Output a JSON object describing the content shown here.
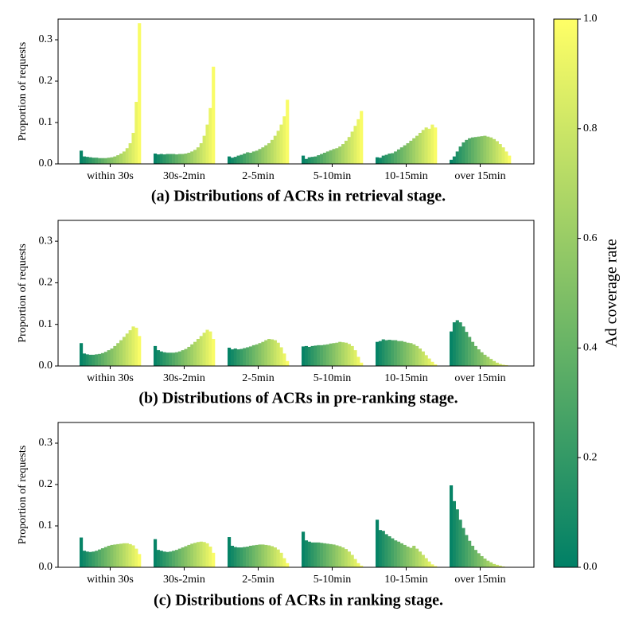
{
  "chart_data": [
    {
      "type": "bar",
      "title": "(a) Distributions of ACRs in retrieval stage.",
      "ylabel": "Proportion of requests",
      "categories": [
        "within 30s",
        "30s-2min",
        "2-5min",
        "5-10min",
        "10-15min",
        "over 15min"
      ],
      "values": [
        [
          0.032,
          0.018,
          0.017,
          0.016,
          0.015,
          0.015,
          0.014,
          0.014,
          0.014,
          0.015,
          0.016,
          0.018,
          0.021,
          0.025,
          0.03,
          0.038,
          0.05,
          0.075,
          0.15,
          0.34
        ],
        [
          0.025,
          0.023,
          0.024,
          0.023,
          0.024,
          0.024,
          0.024,
          0.023,
          0.024,
          0.024,
          0.025,
          0.027,
          0.03,
          0.034,
          0.04,
          0.05,
          0.068,
          0.095,
          0.135,
          0.235
        ],
        [
          0.018,
          0.015,
          0.017,
          0.02,
          0.022,
          0.025,
          0.028,
          0.027,
          0.03,
          0.032,
          0.036,
          0.04,
          0.045,
          0.05,
          0.058,
          0.068,
          0.08,
          0.095,
          0.115,
          0.155
        ],
        [
          0.02,
          0.012,
          0.016,
          0.017,
          0.018,
          0.021,
          0.024,
          0.027,
          0.03,
          0.033,
          0.036,
          0.038,
          0.042,
          0.048,
          0.056,
          0.065,
          0.078,
          0.092,
          0.108,
          0.128
        ],
        [
          0.016,
          0.015,
          0.02,
          0.022,
          0.025,
          0.026,
          0.03,
          0.035,
          0.04,
          0.045,
          0.05,
          0.056,
          0.062,
          0.068,
          0.075,
          0.082,
          0.088,
          0.085,
          0.095,
          0.088
        ],
        [
          0.01,
          0.018,
          0.03,
          0.042,
          0.052,
          0.058,
          0.062,
          0.064,
          0.065,
          0.066,
          0.067,
          0.068,
          0.066,
          0.064,
          0.06,
          0.055,
          0.048,
          0.04,
          0.03,
          0.02
        ]
      ],
      "ylim": [
        0,
        0.35
      ],
      "yticks": [
        {
          "value": 0,
          "label": "0.0"
        },
        0.1,
        0.2,
        0.3
      ],
      "colormap": "summer"
    },
    {
      "type": "bar",
      "title": "(b) Distributions of ACRs in pre-ranking stage.",
      "ylabel": "Proportion of requests",
      "categories": [
        "within 30s",
        "30s-2min",
        "2-5min",
        "5-10min",
        "10-15min",
        "over 15min"
      ],
      "values": [
        [
          0.055,
          0.03,
          0.028,
          0.027,
          0.027,
          0.028,
          0.029,
          0.031,
          0.034,
          0.038,
          0.042,
          0.048,
          0.055,
          0.062,
          0.07,
          0.078,
          0.086,
          0.095,
          0.092,
          0.072
        ],
        [
          0.048,
          0.038,
          0.035,
          0.033,
          0.032,
          0.032,
          0.032,
          0.033,
          0.035,
          0.038,
          0.041,
          0.046,
          0.052,
          0.058,
          0.065,
          0.072,
          0.08,
          0.087,
          0.083,
          0.065
        ],
        [
          0.044,
          0.04,
          0.042,
          0.04,
          0.041,
          0.043,
          0.045,
          0.047,
          0.05,
          0.052,
          0.055,
          0.058,
          0.062,
          0.065,
          0.064,
          0.062,
          0.056,
          0.045,
          0.03,
          0.012
        ],
        [
          0.047,
          0.048,
          0.046,
          0.048,
          0.049,
          0.05,
          0.05,
          0.051,
          0.052,
          0.054,
          0.055,
          0.056,
          0.058,
          0.057,
          0.056,
          0.053,
          0.048,
          0.038,
          0.022,
          0.008
        ],
        [
          0.058,
          0.06,
          0.064,
          0.062,
          0.063,
          0.062,
          0.062,
          0.06,
          0.06,
          0.058,
          0.056,
          0.055,
          0.052,
          0.048,
          0.042,
          0.035,
          0.026,
          0.018,
          0.01,
          0.004
        ],
        [
          0.083,
          0.105,
          0.11,
          0.105,
          0.095,
          0.082,
          0.07,
          0.058,
          0.048,
          0.04,
          0.033,
          0.027,
          0.022,
          0.017,
          0.012,
          0.008,
          0.005,
          0.003,
          0.002,
          0.001
        ]
      ],
      "ylim": [
        0,
        0.35
      ],
      "yticks": [
        {
          "value": 0,
          "label": "0.0"
        },
        0.1,
        0.2,
        0.3
      ],
      "colormap": "summer"
    },
    {
      "type": "bar",
      "title": "(c) Distributions of ACRs in ranking stage.",
      "ylabel": "Proportion of requests",
      "categories": [
        "within 30s",
        "30s-2min",
        "2-5min",
        "5-10min",
        "10-15min",
        "over 15min"
      ],
      "values": [
        [
          0.072,
          0.04,
          0.038,
          0.037,
          0.038,
          0.04,
          0.043,
          0.046,
          0.049,
          0.052,
          0.054,
          0.055,
          0.056,
          0.057,
          0.058,
          0.058,
          0.056,
          0.053,
          0.045,
          0.032
        ],
        [
          0.068,
          0.042,
          0.04,
          0.038,
          0.037,
          0.038,
          0.04,
          0.042,
          0.045,
          0.048,
          0.051,
          0.054,
          0.057,
          0.059,
          0.061,
          0.062,
          0.061,
          0.058,
          0.05,
          0.035
        ],
        [
          0.073,
          0.052,
          0.049,
          0.048,
          0.048,
          0.049,
          0.05,
          0.052,
          0.053,
          0.054,
          0.055,
          0.055,
          0.054,
          0.053,
          0.051,
          0.048,
          0.043,
          0.035,
          0.022,
          0.01
        ],
        [
          0.086,
          0.065,
          0.062,
          0.06,
          0.06,
          0.06,
          0.059,
          0.058,
          0.057,
          0.056,
          0.055,
          0.053,
          0.051,
          0.048,
          0.044,
          0.038,
          0.03,
          0.02,
          0.01,
          0.004
        ],
        [
          0.115,
          0.09,
          0.088,
          0.08,
          0.075,
          0.07,
          0.065,
          0.062,
          0.058,
          0.054,
          0.05,
          0.047,
          0.052,
          0.045,
          0.038,
          0.03,
          0.022,
          0.014,
          0.007,
          0.003
        ],
        [
          0.198,
          0.16,
          0.14,
          0.115,
          0.095,
          0.078,
          0.064,
          0.052,
          0.042,
          0.034,
          0.027,
          0.021,
          0.016,
          0.012,
          0.008,
          0.006,
          0.004,
          0.002,
          0.001,
          0.001
        ]
      ],
      "ylim": [
        0,
        0.35
      ],
      "yticks": [
        {
          "value": 0,
          "label": "0.0"
        },
        0.1,
        0.2,
        0.3
      ],
      "colormap": "summer"
    }
  ],
  "colorbar": {
    "label": "Ad coverage rate",
    "lim": [
      0,
      1
    ],
    "colormap": "summer",
    "ticks": [
      {
        "value": 0,
        "label": "0.0"
      },
      {
        "value": 0.2,
        "label": "0.2"
      },
      {
        "value": 0.4,
        "label": "0.4"
      },
      {
        "value": 0.6,
        "label": "0.6"
      },
      {
        "value": 0.8,
        "label": "0.8"
      },
      {
        "value": 1,
        "label": "1.0"
      }
    ]
  }
}
